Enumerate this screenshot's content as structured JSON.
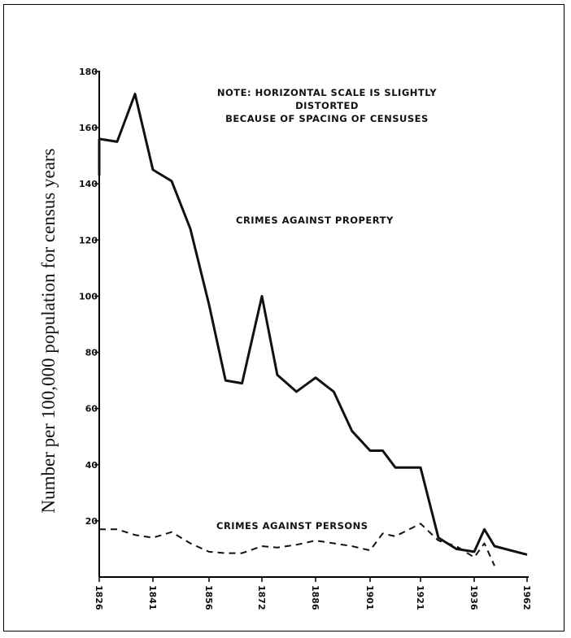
{
  "chart_data": {
    "type": "line",
    "ylabel": "Number per 100,000 population for census years",
    "xlabel": "",
    "ylim": [
      0,
      180
    ],
    "y_ticks": [
      20,
      40,
      60,
      80,
      100,
      120,
      140,
      160,
      180
    ],
    "y_tick_labels": [
      "20",
      "40",
      "60",
      "80",
      "100",
      "120",
      "140",
      "160",
      "180"
    ],
    "x_ticks": [
      "1826",
      "1841",
      "1856",
      "1872",
      "1886",
      "1901",
      "1921",
      "1936",
      "1962"
    ],
    "grid": false,
    "note_lines": [
      "NOTE: HORIZONTAL SCALE IS SLIGHTLY DISTORTED",
      "BECAUSE OF SPACING OF CENSUSES"
    ],
    "series": [
      {
        "name": "CRIMES AGAINST PROPERTY",
        "style": "solid",
        "x": [
          1826,
          1831,
          1836,
          1841,
          1846,
          1851,
          1856,
          1861,
          1866,
          1872,
          1876,
          1881,
          1886,
          1891,
          1896,
          1901,
          1906,
          1911,
          1921,
          1926,
          1931,
          1936,
          1941,
          1946,
          1962
        ],
        "values": [
          156,
          155,
          172,
          145,
          141,
          124,
          97,
          70,
          69,
          100,
          72,
          66,
          71,
          66,
          52,
          45,
          45,
          39,
          39,
          14,
          10,
          9,
          17,
          11,
          8
        ]
      },
      {
        "name": "CRIMES AGAINST PERSONS",
        "style": "dashed",
        "x": [
          1826,
          1831,
          1836,
          1841,
          1846,
          1851,
          1856,
          1861,
          1866,
          1872,
          1876,
          1881,
          1886,
          1891,
          1896,
          1901,
          1906,
          1911,
          1921,
          1926,
          1931,
          1936,
          1941,
          1946,
          1962
        ],
        "values": [
          17,
          17,
          15,
          14,
          16,
          12,
          9,
          8.5,
          8.5,
          11,
          10.5,
          11.5,
          13,
          12,
          11,
          9.5,
          15.5,
          14.5,
          19,
          13,
          11,
          7,
          12,
          4,
          null
        ]
      }
    ]
  }
}
